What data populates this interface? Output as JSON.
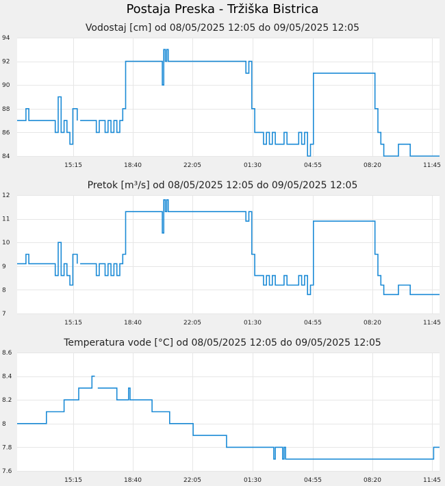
{
  "page_title": "Postaja Preska - Tržiška Bistrica",
  "colors": {
    "line": "#1a8ad6",
    "background": "#f0f0f0",
    "plot": "#ffffff",
    "grid": "#e6e6e6"
  },
  "chart_data": [
    {
      "type": "line",
      "title": "Vodostaj [cm] od 08/05/2025 12:05 do 09/05/2025 12:05",
      "xlabel": "",
      "ylabel": "",
      "xticks": [
        "15:15",
        "18:40",
        "22:05",
        "01:30",
        "04:55",
        "08:20",
        "11:45"
      ],
      "yticks": [
        "84",
        "86",
        "88",
        "90",
        "92",
        "94"
      ],
      "ylim": [
        84,
        94
      ],
      "grid": true,
      "series": [
        {
          "x": [
            "08/05 12:05",
            "08/05 12:25",
            "08/05 12:35",
            "08/05 12:45",
            "08/05 14:05",
            "08/05 14:15",
            "08/05 14:25",
            "08/05 14:35",
            "08/05 14:45",
            "08/05 14:55",
            "08/05 15:05",
            "08/05 15:15",
            "08/05 15:30",
            "08/05 15:40",
            "08/05 16:35",
            "08/05 16:45",
            "08/05 17:05",
            "08/05 17:15",
            "08/05 17:25",
            "08/05 17:35",
            "08/05 17:45",
            "08/05 17:55",
            "08/05 18:05",
            "08/05 18:15",
            "08/05 18:25",
            "08/05 18:35",
            "08/05 18:45",
            "08/05 18:55",
            "08/05 19:05",
            "08/05 20:15",
            "08/05 20:20",
            "08/05 20:25",
            "08/05 20:30",
            "08/05 20:35",
            "08/05 20:40",
            "08/05 20:45",
            "08/05 20:50",
            "09/05 00:55",
            "09/05 01:05",
            "09/05 01:15",
            "09/05 01:25",
            "09/05 01:35",
            "09/05 01:55",
            "09/05 02:05",
            "09/05 02:15",
            "09/05 02:25",
            "09/05 02:35",
            "09/05 02:45",
            "09/05 03:00",
            "09/05 03:15",
            "09/05 03:25",
            "09/05 03:35",
            "09/05 04:05",
            "09/05 04:15",
            "09/05 04:25",
            "09/05 04:35",
            "09/05 04:45",
            "09/05 04:55",
            "09/05 05:05",
            "09/05 05:25",
            "09/05 05:35",
            "09/05 05:45",
            "09/05 08:15",
            "09/05 08:25",
            "09/05 08:35",
            "09/05 08:45",
            "09/05 08:55",
            "09/05 09:35",
            "09/05 09:45",
            "09/05 10:15",
            "09/05 10:25",
            "09/05 12:05"
          ],
          "y": [
            87,
            87,
            88,
            87,
            87,
            86,
            89,
            86,
            87,
            86,
            85,
            88,
            87,
            87,
            86,
            87,
            86,
            87,
            86,
            87,
            86,
            87,
            88,
            92,
            92,
            92,
            92,
            92,
            92,
            92,
            90,
            93,
            92,
            93,
            92,
            92,
            92,
            92,
            91,
            92,
            88,
            86,
            86,
            85,
            86,
            85,
            86,
            85,
            85,
            86,
            85,
            85,
            86,
            85,
            86,
            84,
            85,
            91,
            91,
            91,
            91,
            91,
            91,
            88,
            86,
            85,
            84,
            84,
            85,
            85,
            84,
            84
          ],
          "gaps_after": [
            12
          ]
        }
      ]
    },
    {
      "type": "line",
      "title": "Pretok [m³/s] od 08/05/2025 12:05 do 09/05/2025 12:05",
      "xlabel": "",
      "ylabel": "",
      "xticks": [
        "15:15",
        "18:40",
        "22:05",
        "01:30",
        "04:55",
        "08:20",
        "11:45"
      ],
      "yticks": [
        "7",
        "8",
        "9",
        "10",
        "11",
        "12"
      ],
      "ylim": [
        7,
        12
      ],
      "grid": true,
      "series": [
        {
          "x": [
            "08/05 12:05",
            "08/05 12:25",
            "08/05 12:35",
            "08/05 12:45",
            "08/05 14:05",
            "08/05 14:15",
            "08/05 14:25",
            "08/05 14:35",
            "08/05 14:45",
            "08/05 14:55",
            "08/05 15:05",
            "08/05 15:15",
            "08/05 15:30",
            "08/05 15:40",
            "08/05 16:35",
            "08/05 16:45",
            "08/05 17:05",
            "08/05 17:15",
            "08/05 17:25",
            "08/05 17:35",
            "08/05 17:45",
            "08/05 17:55",
            "08/05 18:05",
            "08/05 18:15",
            "08/05 18:25",
            "08/05 18:35",
            "08/05 18:45",
            "08/05 18:55",
            "08/05 19:05",
            "08/05 20:15",
            "08/05 20:20",
            "08/05 20:25",
            "08/05 20:30",
            "08/05 20:35",
            "08/05 20:40",
            "08/05 20:45",
            "08/05 20:50",
            "09/05 00:55",
            "09/05 01:05",
            "09/05 01:15",
            "09/05 01:25",
            "09/05 01:35",
            "09/05 01:55",
            "09/05 02:05",
            "09/05 02:15",
            "09/05 02:25",
            "09/05 02:35",
            "09/05 02:45",
            "09/05 03:00",
            "09/05 03:15",
            "09/05 03:25",
            "09/05 03:35",
            "09/05 04:05",
            "09/05 04:15",
            "09/05 04:25",
            "09/05 04:35",
            "09/05 04:45",
            "09/05 04:55",
            "09/05 05:05",
            "09/05 05:25",
            "09/05 05:35",
            "09/05 05:45",
            "09/05 08:15",
            "09/05 08:25",
            "09/05 08:35",
            "09/05 08:45",
            "09/05 08:55",
            "09/05 09:35",
            "09/05 09:45",
            "09/05 10:15",
            "09/05 10:25",
            "09/05 12:05"
          ],
          "y": [
            9.1,
            9.1,
            9.5,
            9.1,
            9.1,
            8.6,
            10.0,
            8.6,
            9.1,
            8.6,
            8.2,
            9.5,
            9.1,
            9.1,
            8.6,
            9.1,
            8.6,
            9.1,
            8.6,
            9.1,
            8.6,
            9.1,
            9.5,
            11.3,
            11.3,
            11.3,
            11.3,
            11.3,
            11.3,
            11.3,
            10.4,
            11.8,
            11.3,
            11.8,
            11.3,
            11.3,
            11.3,
            11.3,
            10.9,
            11.3,
            9.5,
            8.6,
            8.6,
            8.2,
            8.6,
            8.2,
            8.6,
            8.2,
            8.2,
            8.6,
            8.2,
            8.2,
            8.6,
            8.2,
            8.6,
            7.8,
            8.2,
            10.9,
            10.9,
            10.9,
            10.9,
            10.9,
            10.9,
            9.5,
            8.6,
            8.2,
            7.8,
            7.8,
            8.2,
            8.2,
            7.8,
            7.8
          ],
          "gaps_after": [
            12
          ]
        }
      ]
    },
    {
      "type": "line",
      "title": "Temperatura vode [°C] od 08/05/2025 12:05 do 09/05/2025 12:05",
      "xlabel": "",
      "ylabel": "",
      "xticks": [
        "15:15",
        "18:40",
        "22:05",
        "01:30",
        "04:55",
        "08:20",
        "11:45"
      ],
      "yticks": [
        "7.6",
        "7.8",
        "8",
        "8.2",
        "8.4",
        "8.6"
      ],
      "ylim": [
        7.6,
        8.6
      ],
      "grid": true,
      "series": [
        {
          "x": [
            "08/05 12:05",
            "08/05 13:35",
            "08/05 13:45",
            "08/05 14:35",
            "08/05 14:45",
            "08/05 15:25",
            "08/05 15:35",
            "08/05 16:10",
            "08/05 16:20",
            "08/05 16:30",
            "08/05 16:40",
            "08/05 17:35",
            "08/05 17:45",
            "08/05 18:20",
            "08/05 18:25",
            "08/05 18:30",
            "08/05 18:35",
            "08/05 18:40",
            "08/05 19:35",
            "08/05 19:45",
            "08/05 20:35",
            "08/05 20:45",
            "08/05 21:55",
            "08/05 22:05",
            "08/05 23:55",
            "08/05 23:59",
            "09/05 02:35",
            "09/05 02:40",
            "09/05 02:45",
            "09/05 03:05",
            "09/05 03:10",
            "09/05 03:15",
            "09/05 03:20",
            "09/05 03:25",
            "09/05 11:35",
            "09/05 11:45",
            "09/05 12:05"
          ],
          "y": [
            8.0,
            8.0,
            8.1,
            8.1,
            8.2,
            8.2,
            8.3,
            8.3,
            8.4,
            8.4,
            8.3,
            8.3,
            8.2,
            8.2,
            8.3,
            8.2,
            8.2,
            8.2,
            8.2,
            8.1,
            8.1,
            8.0,
            8.0,
            7.9,
            7.9,
            7.8,
            7.8,
            7.7,
            7.8,
            7.8,
            7.7,
            7.8,
            7.7,
            7.7,
            7.7,
            7.8,
            7.8
          ],
          "gaps_after": [
            9
          ]
        }
      ]
    }
  ]
}
